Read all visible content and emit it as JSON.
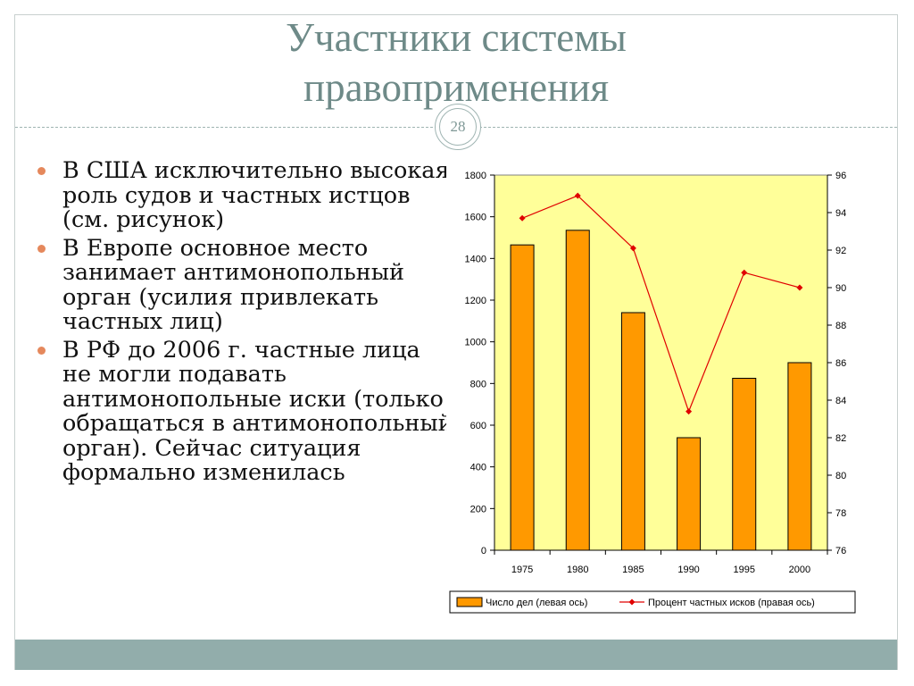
{
  "slide": {
    "title_lines": [
      "Участники системы",
      "правоприменения"
    ],
    "slide_number": "28"
  },
  "bullets": [
    "В США исключительно высокая роль судов и частных истцов (см. рисунок)",
    "В Европе основное место занимает антимонопольный орган (усилия привлекать частных лиц)",
    "В РФ до 2006 г. частные лица не могли подавать антимонопольные иски (только обращаться в антимонопольный орган). Сейчас ситуация формально изменилась"
  ],
  "colors": {
    "accent": "#6e8a88",
    "bar_fill": "#ff9900",
    "line": "#e00000",
    "plot_bg": "#ffff99",
    "bottom_bar": "#92adab",
    "bullet": "#e5885c"
  },
  "chart_data": {
    "type": "bar",
    "categories": [
      "1975",
      "1980",
      "1985",
      "1990",
      "1995",
      "2000"
    ],
    "series": [
      {
        "name": "Число дел (левая ось)",
        "type": "bar",
        "axis": "left",
        "values": [
          1465,
          1535,
          1140,
          540,
          825,
          900
        ]
      },
      {
        "name": "Процент частных исков (правая ось)",
        "type": "line",
        "axis": "right",
        "values": [
          93.7,
          94.9,
          92.1,
          83.4,
          90.8,
          90.0
        ]
      }
    ],
    "y_left": {
      "min": 0,
      "max": 1800,
      "ticks": [
        "0",
        "200",
        "400",
        "600",
        "800",
        "1000",
        "1200",
        "1400",
        "1600",
        "1800"
      ]
    },
    "y_right": {
      "min": 76,
      "max": 96,
      "ticks": [
        "76",
        "78",
        "80",
        "82",
        "84",
        "86",
        "88",
        "90",
        "92",
        "94",
        "96"
      ]
    },
    "legend": {
      "position": "bottom"
    },
    "grid": false
  }
}
